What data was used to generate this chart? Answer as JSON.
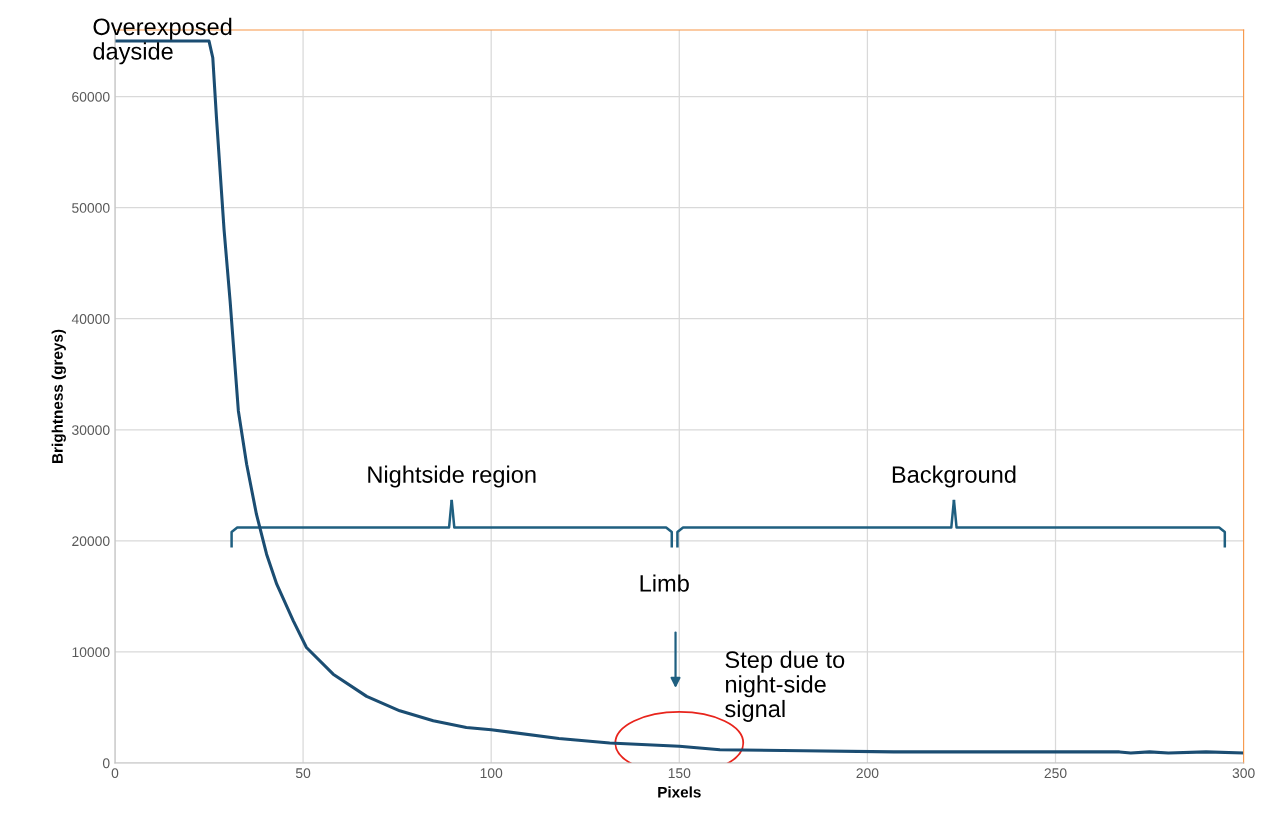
{
  "chart_data": {
    "type": "line",
    "xlabel": "Pixels",
    "ylabel": "Brightness (greys)",
    "x": [
      0,
      10,
      20,
      25,
      26,
      27,
      29,
      30.6,
      32.8,
      35,
      37.6,
      40.3,
      43,
      47.4,
      50.9,
      58,
      66.9,
      75.7,
      84.6,
      93.4,
      100,
      118,
      131.5,
      150,
      160.8,
      183,
      207,
      267,
      270,
      275,
      280,
      290,
      300
    ],
    "series": [
      {
        "color": "#1b4d72",
        "values": [
          65000,
          65000,
          65000,
          65000,
          63500,
          58000,
          48000,
          41600,
          31700,
          26900,
          22400,
          18800,
          16100,
          12800,
          10400,
          8000,
          6000,
          4700,
          3800,
          3200,
          3000,
          2200,
          1800,
          1500,
          1200,
          1100,
          1000,
          1000,
          900,
          1000,
          900,
          1000,
          900
        ]
      }
    ],
    "xlim": [
      0,
      300
    ],
    "xticks": [
      0,
      50,
      100,
      150,
      200,
      250,
      300
    ],
    "ylim": [
      0,
      66000
    ],
    "yticks": [
      0,
      10000,
      20000,
      30000,
      40000,
      50000,
      60000
    ],
    "grid": true,
    "marker": "none",
    "line_style": "solid",
    "annotations": [
      {
        "text": "Overexposed\ndayside",
        "x": 12,
        "y": 65000
      },
      "Nightside region",
      "Background",
      "Limb",
      {
        "text": "Step due to\nnight-side\nsignal",
        "x": 150,
        "y": 1500
      }
    ]
  }
}
